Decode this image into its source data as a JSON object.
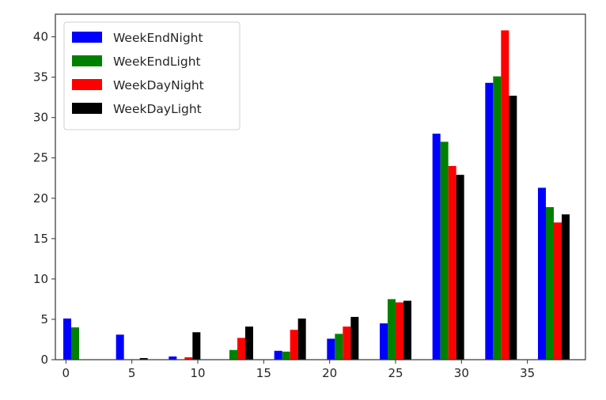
{
  "chart_data": {
    "type": "bar",
    "x": [
      1,
      5,
      9,
      13,
      17,
      21,
      25,
      29,
      33,
      37
    ],
    "bar_width_data_units": 0.6,
    "series": [
      {
        "name": "WeekEndNight",
        "color": "#0000ff",
        "values": [
          5.1,
          3.1,
          0.4,
          0.0,
          1.1,
          2.6,
          4.5,
          28.0,
          34.3,
          21.3
        ]
      },
      {
        "name": "WeekEndLight",
        "color": "#008000",
        "values": [
          4.0,
          0.0,
          0.0,
          1.2,
          1.0,
          3.2,
          7.5,
          27.0,
          35.1,
          18.9
        ]
      },
      {
        "name": "WeekDayNight",
        "color": "#ff0000",
        "values": [
          0.0,
          0.05,
          0.3,
          2.7,
          3.7,
          4.1,
          7.1,
          24.0,
          40.8,
          17.0
        ]
      },
      {
        "name": "WeekDayLight",
        "color": "#000000",
        "values": [
          0.0,
          0.2,
          3.4,
          4.1,
          5.1,
          5.3,
          7.3,
          22.9,
          32.7,
          18.0
        ]
      }
    ],
    "xlim": [
      -0.8,
      39.4
    ],
    "ylim": [
      0,
      42.8
    ],
    "xticks": [
      0,
      5,
      10,
      15,
      20,
      25,
      30,
      35
    ],
    "yticks": [
      0,
      5,
      10,
      15,
      20,
      25,
      30,
      35,
      40
    ],
    "title": "",
    "xlabel": "",
    "ylabel": "",
    "grid": false,
    "legend_position": "top-left"
  }
}
